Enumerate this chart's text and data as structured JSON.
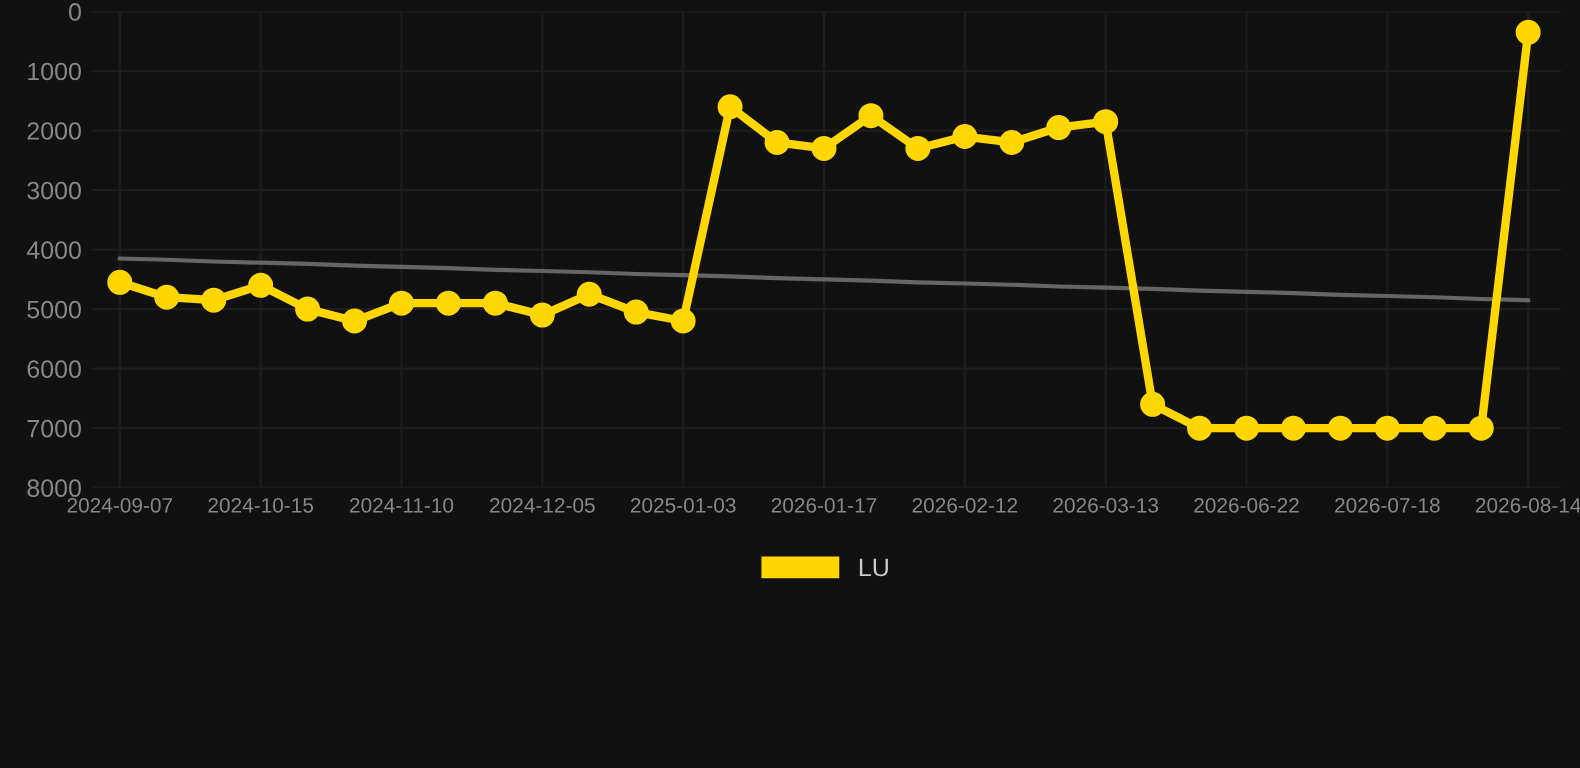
{
  "chart_data": {
    "type": "line",
    "categories": [
      "2024-09-07",
      null,
      null,
      "2024-10-15",
      null,
      null,
      "2024-11-10",
      null,
      null,
      "2024-12-05",
      null,
      null,
      "2025-01-03",
      null,
      null,
      "2026-01-17",
      null,
      null,
      "2026-02-12",
      null,
      null,
      "2026-03-13",
      null,
      null,
      "2026-06-22",
      null,
      null,
      "2026-07-18",
      null,
      null,
      "2026-08-14"
    ],
    "series": [
      {
        "name": "LU",
        "color": "#ffd700",
        "marker": "circle",
        "values": [
          4550,
          4800,
          4850,
          4600,
          5000,
          5200,
          4900,
          4900,
          4900,
          5100,
          4750,
          5050,
          5200,
          1600,
          2200,
          2300,
          1750,
          2300,
          2100,
          2200,
          1950,
          1850,
          6600,
          7000,
          7000,
          7000,
          7000,
          7000,
          7000,
          7000,
          350
        ]
      },
      {
        "type": "line",
        "color": "#666666",
        "marker": "none",
        "values": [
          4150,
          4170,
          4200,
          4220,
          4240,
          4270,
          4290,
          4310,
          4340,
          4360,
          4380,
          4410,
          4430,
          4450,
          4480,
          4500,
          4520,
          4550,
          4570,
          4590,
          4620,
          4640,
          4660,
          4690,
          4710,
          4730,
          4760,
          4780,
          4800,
          4830,
          4850
        ]
      }
    ],
    "ylim": [
      8000,
      0
    ],
    "yticks": [
      0,
      1000,
      2000,
      3000,
      4000,
      5000,
      6000,
      7000,
      8000
    ],
    "grid": true,
    "legend": "bottom"
  }
}
